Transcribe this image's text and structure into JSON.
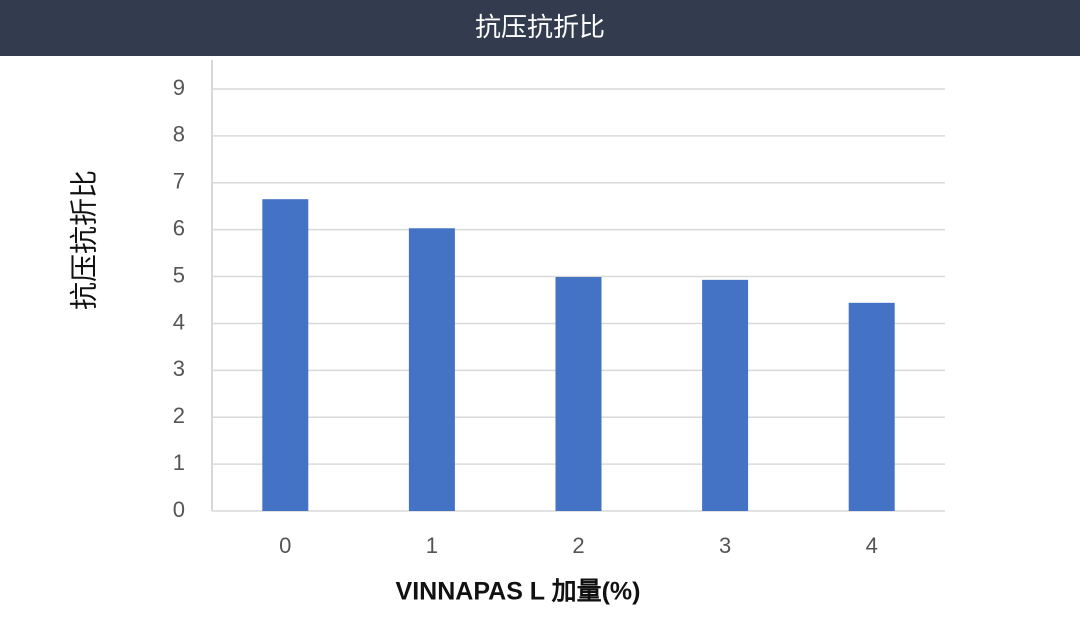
{
  "chart_data": {
    "type": "bar",
    "title": "抗压抗折比",
    "ylabel": "抗压抗折比",
    "xlabel": "VINNAPAS L 加量(%)",
    "categories": [
      "0",
      "1",
      "2",
      "3",
      "4"
    ],
    "values": [
      6.65,
      6.03,
      4.99,
      4.93,
      4.44
    ],
    "color": "#4472c4",
    "ylim": [
      0,
      9
    ],
    "yticks": [
      0,
      1,
      2,
      3,
      4,
      5,
      6,
      7,
      8,
      9
    ],
    "grid": true
  }
}
